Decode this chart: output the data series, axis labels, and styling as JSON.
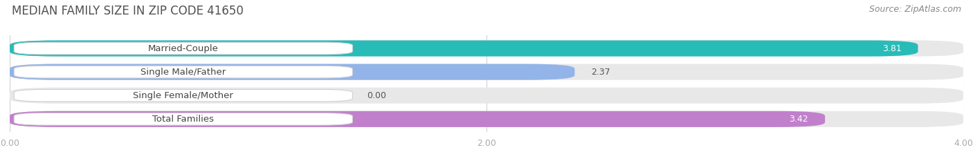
{
  "title": "MEDIAN FAMILY SIZE IN ZIP CODE 41650",
  "source": "Source: ZipAtlas.com",
  "categories": [
    "Married-Couple",
    "Single Male/Father",
    "Single Female/Mother",
    "Total Families"
  ],
  "values": [
    3.81,
    2.37,
    0.0,
    3.42
  ],
  "bar_colors": [
    "#29bbb8",
    "#92b4e8",
    "#f0a0b4",
    "#c080cc"
  ],
  "xlim_min": 0,
  "xlim_max": 4.0,
  "xticks": [
    0.0,
    2.0,
    4.0
  ],
  "xtick_labels": [
    "0.00",
    "2.00",
    "4.00"
  ],
  "background_color": "#ffffff",
  "bar_bg_color": "#e8e8e8",
  "title_fontsize": 12,
  "source_fontsize": 9,
  "label_fontsize": 9.5,
  "value_fontsize": 9
}
